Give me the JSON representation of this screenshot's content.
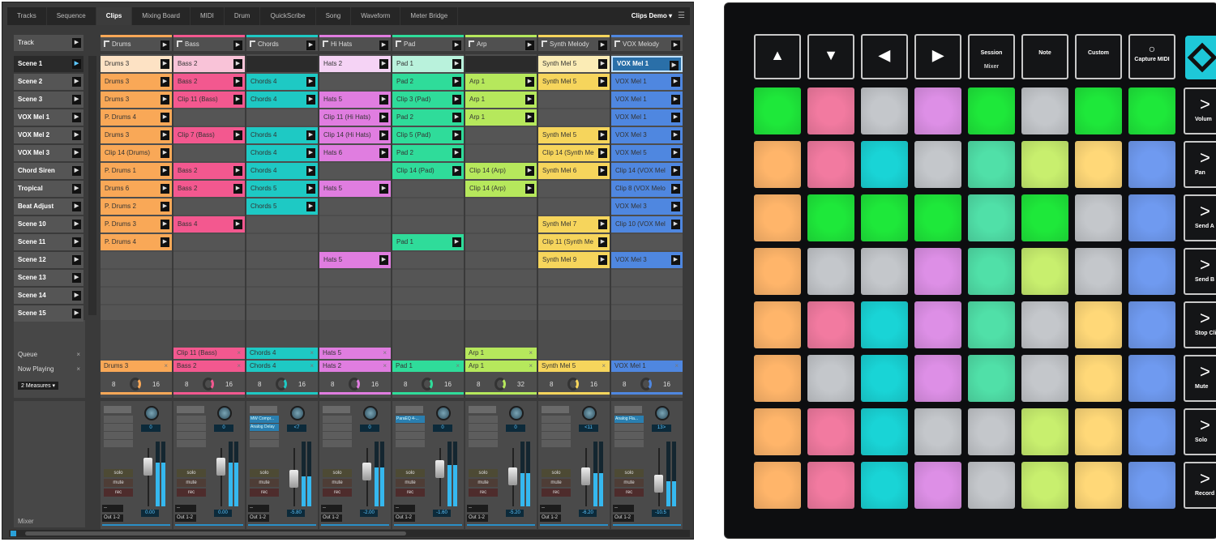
{
  "tabs": [
    "Tracks",
    "Sequence",
    "Clips",
    "Mixing Board",
    "MIDI",
    "Drum",
    "QuickScribe",
    "Song",
    "Waveform",
    "Meter Bridge"
  ],
  "active_tab": "Clips",
  "song_selector": "Clips Demo ▾",
  "track_label": "Track",
  "scenes": [
    "Scene 1",
    "Scene 2",
    "Scene 3",
    "VOX Mel 1",
    "VOX Mel 2",
    "VOX Mel 3",
    "Chord Siren",
    "Tropical",
    "Beat Adjust",
    "Scene 10",
    "Scene 11",
    "Scene 12",
    "Scene 13",
    "Scene 14",
    "Scene 15"
  ],
  "tracks": [
    {
      "name": "Drums",
      "color": "#f9a857",
      "light": "#fde2c4"
    },
    {
      "name": "Bass",
      "color": "#f3588f",
      "light": "#f9c3d8"
    },
    {
      "name": "Chords",
      "color": "#1ec9c4",
      "light": "#b5eeec"
    },
    {
      "name": "Hi Hats",
      "color": "#e07de0",
      "light": "#f5d3f5"
    },
    {
      "name": "Pad",
      "color": "#2fdc9a",
      "light": "#b9f2dc"
    },
    {
      "name": "Arp",
      "color": "#b6e85c",
      "light": "#e4f7c4"
    },
    {
      "name": "Synth Melody",
      "color": "#f6d55c",
      "light": "#fbecb5"
    },
    {
      "name": "VOX Melody",
      "color": "#4f87e0",
      "light": "#a9c6f3"
    }
  ],
  "clips": [
    [
      "Drums 3",
      "Bass 2",
      "#",
      "Hats 2",
      "Pad 1",
      "#",
      "Synth Mel 5",
      "VOX Mel 1"
    ],
    [
      "Drums 3",
      "Bass 2",
      "Chords 4",
      null,
      "Pad 2",
      "Arp 1",
      "Synth Mel 5",
      "VOX Mel 1"
    ],
    [
      "Drums 3",
      "Clip 11 (Bass)",
      "Chords 4",
      "Hats 5",
      "Clip 3 (Pad)",
      "Arp 1",
      null,
      "VOX Mel 1"
    ],
    [
      "P. Drums 4",
      null,
      null,
      "Clip 11 (Hi Hats)",
      "Pad 2",
      "Arp 1",
      null,
      "VOX Mel 1"
    ],
    [
      "Drums 3",
      "Clip 7 (Bass)",
      "Chords 4",
      "Clip 14 (Hi Hats)",
      "Clip 5 (Pad)",
      null,
      "Synth Mel 5",
      "VOX Mel 3"
    ],
    [
      "Clip 14 (Drums)",
      null,
      "Chords 4",
      "Hats 6",
      "Pad 2",
      null,
      "Clip 14 (Synth Me",
      "VOX Mel 5"
    ],
    [
      "P. Drums 1",
      "Bass 2",
      "Chords 4",
      null,
      "Clip 14 (Pad)",
      "Clip 14 (Arp)",
      "Synth Mel 6",
      "Clip 14 (VOX Mel"
    ],
    [
      "Drums 6",
      "Bass 2",
      "Chords 5",
      "Hats 5",
      null,
      "Clip 14 (Arp)",
      null,
      "Clip 8 (VOX Melo"
    ],
    [
      "P. Drums 2",
      null,
      "Chords 5",
      null,
      null,
      null,
      null,
      "VOX Mel 3"
    ],
    [
      "P. Drums 3",
      "Bass 4",
      null,
      null,
      null,
      null,
      "Synth Mel 7",
      "Clip 10 (VOX Mel"
    ],
    [
      "P. Drums 4",
      null,
      null,
      null,
      "Pad 1",
      null,
      "Clip 11 (Synth Me",
      null
    ],
    [
      null,
      null,
      null,
      "Hats 5",
      null,
      null,
      "Synth Mel 9",
      "VOX Mel 3"
    ],
    [
      null,
      null,
      null,
      null,
      null,
      null,
      null,
      null
    ],
    [
      null,
      null,
      null,
      null,
      null,
      null,
      null,
      null
    ],
    [
      null,
      null,
      null,
      null,
      null,
      null,
      null,
      null
    ]
  ],
  "selected_clip": "VOX Mel 1",
  "queue_label": "Queue",
  "now_playing_label": "Now Playing",
  "measures": "2 Measures",
  "queue": [
    null,
    "Clip 11 (Bass)",
    "Chords 4",
    "Hats 5",
    null,
    "Arp 1",
    null,
    null
  ],
  "now_playing": [
    "Drums 3",
    "Bass 2",
    "Chords 4",
    "Hats 2",
    "Pad 1",
    "Arp 1",
    "Synth Mel 5",
    "VOX Mel 1"
  ],
  "loop": [
    [
      "8",
      "16"
    ],
    [
      "8",
      "16"
    ],
    [
      "8",
      "16"
    ],
    [
      "8",
      "16"
    ],
    [
      "8",
      "16"
    ],
    [
      "8",
      "32"
    ],
    [
      "8",
      "16"
    ],
    [
      "8",
      "16"
    ]
  ],
  "inserts": [
    [],
    [],
    [
      "MW Compr...",
      "Analog Delay"
    ],
    [],
    [
      "ParaEQ 4-..."
    ],
    [],
    [],
    [
      "Analog Fla..."
    ]
  ],
  "pan": [
    "0",
    "0",
    "<7",
    "0",
    "0",
    "0",
    "<11",
    "13>"
  ],
  "volume": [
    "0.00",
    "0.00",
    "-5.80",
    "-2.00",
    "-1.60",
    "-5.20",
    "-6.20",
    "-10.5"
  ],
  "fader_level": [
    0.8,
    0.8,
    0.55,
    0.7,
    0.75,
    0.6,
    0.6,
    0.45
  ],
  "solo": "solo",
  "mute": "mute",
  "rec": "rec",
  "input": "--",
  "output": "Out 1-2",
  "mixer_label": "Mixer",
  "launchpad": {
    "top_buttons": [
      {
        "icon": "▲",
        "label": ""
      },
      {
        "icon": "▼",
        "label": ""
      },
      {
        "icon": "◀",
        "label": ""
      },
      {
        "icon": "▶",
        "label": ""
      },
      {
        "icon": "",
        "label": "Session",
        "sub": "Mixer"
      },
      {
        "icon": "",
        "label": "Note"
      },
      {
        "icon": "",
        "label": "Custom"
      },
      {
        "icon": "○",
        "label": "Capture MIDI"
      }
    ],
    "side_buttons": [
      "Volum",
      "Pan",
      "Send A",
      "Send B",
      "Stop Cli",
      "Mute",
      "Solo",
      "Record A"
    ],
    "palette": {
      "G": "#1ee83a",
      "P": "#f27aa0",
      "W": "#c4c7cb",
      "V": "#dd8fe6",
      "O": "#ffb56a",
      "C": "#19d4d6",
      "T": "#50e0a8",
      "L": "#c8ef6e",
      "Y": "#ffd878",
      "B": "#6f9af0"
    },
    "pads": [
      "GPWVGWGG",
      "OPCWTLYB",
      "OGGGTGWB",
      "OWWVTLWB",
      "OPCVTWYB",
      "OWCVTWYB",
      "OPCWWLYB",
      "OPCVWLYB"
    ]
  }
}
